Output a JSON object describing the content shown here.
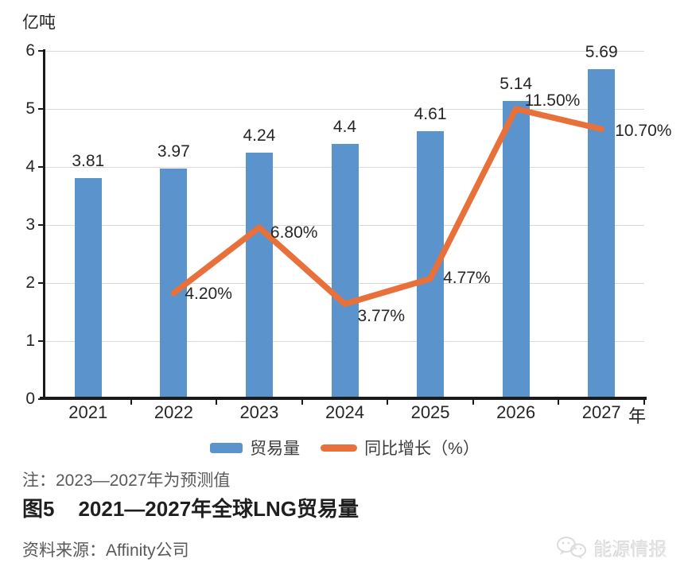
{
  "chart_data": {
    "type": "bar",
    "subtype": "bar+line combo, line on hidden secondary axis",
    "categories": [
      "2021",
      "2022",
      "2023",
      "2024",
      "2025",
      "2026",
      "2027"
    ],
    "series": [
      {
        "name": "贸易量",
        "type": "bar",
        "axis": "primary",
        "color": "#5B93CC",
        "values": [
          3.81,
          3.97,
          4.24,
          4.4,
          4.61,
          5.14,
          5.69
        ],
        "data_labels": [
          "3.81",
          "3.97",
          "4.24",
          "4.4",
          "4.61",
          "5.14",
          "5.69"
        ]
      },
      {
        "name": "同比增长（%）",
        "type": "line",
        "axis": "secondary",
        "color": "#E8703A",
        "values": [
          null,
          4.2,
          6.8,
          3.77,
          4.77,
          11.5,
          10.7
        ],
        "data_labels": [
          null,
          "4.20%",
          "6.80%",
          "3.77%",
          "4.77%",
          "11.50%",
          "10.70%"
        ]
      }
    ],
    "title": "图5 2021—2027年全球LNG贸易量",
    "ylabel": "亿吨",
    "xlabel": "年",
    "ylim": [
      0,
      6
    ],
    "yticks": [
      "0",
      "1",
      "2",
      "3",
      "4",
      "5",
      "6"
    ],
    "y2lim": [
      0,
      13.8
    ],
    "y2_axis_visible": false,
    "grid": true,
    "legend_position": "bottom"
  },
  "note": "注：2023—2027年为预测值",
  "figure": {
    "label": "图5",
    "title": "2021—2027年全球LNG贸易量"
  },
  "source": "资料来源：Affinity公司",
  "watermark": {
    "name": "能源情报",
    "icon": "wechat-icon"
  }
}
